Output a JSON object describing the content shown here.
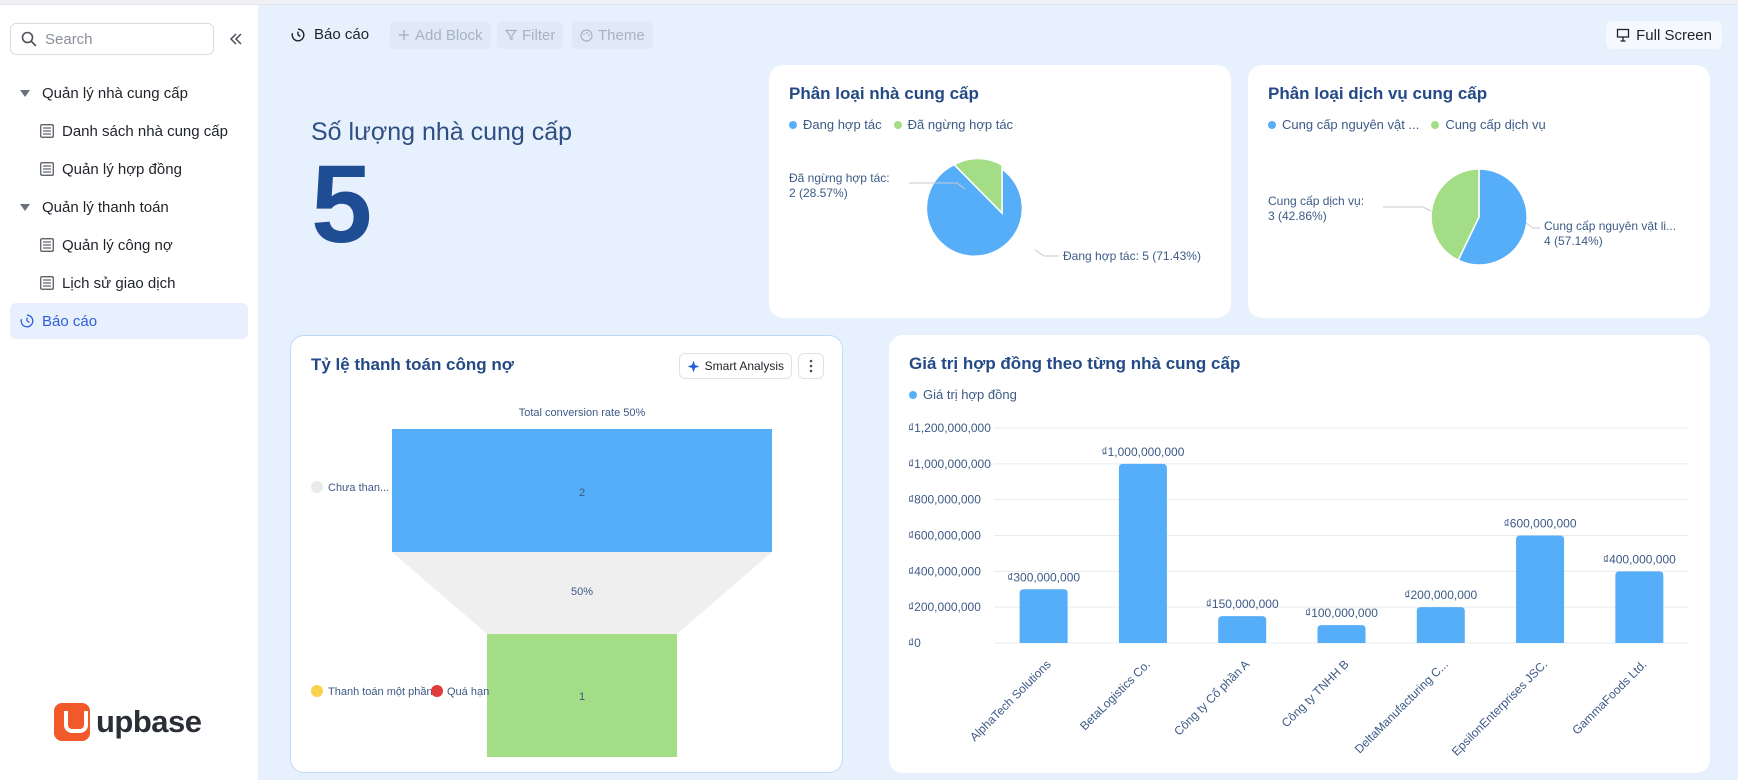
{
  "sidebar": {
    "search_placeholder": "Search",
    "items": [
      {
        "label": "Quản lý nhà cung cấp"
      },
      {
        "label": "Danh sách nhà cung cấp"
      },
      {
        "label": "Quản lý hợp đồng"
      },
      {
        "label": "Quản lý thanh toán"
      },
      {
        "label": "Quản lý công nợ"
      },
      {
        "label": "Lịch sử giao dịch"
      },
      {
        "label": "Báo cáo"
      }
    ],
    "logo_text": "upbase"
  },
  "toolbar": {
    "title": "Báo cáo",
    "add_block": "Add Block",
    "filter": "Filter",
    "theme": "Theme",
    "full_screen": "Full Screen"
  },
  "kpi": {
    "title": "Số lượng nhà cung cấp",
    "value": "5"
  },
  "pie1": {
    "title": "Phân loại nhà cung cấp",
    "legend": [
      "Đang hợp tác",
      "Đã ngừng hợp tác"
    ],
    "label_a_line1": "Đã ngừng hợp tác:",
    "label_a_line2": "2 (28.57%)",
    "label_b": "Đang hợp tác: 5 (71.43%)"
  },
  "pie2": {
    "title": "Phân loại dịch vụ cung cấp",
    "legend": [
      "Cung cấp nguyên vật ...",
      "Cung cấp dịch vụ"
    ],
    "label_a_line1": "Cung cấp dịch vụ:",
    "label_a_line2": "3 (42.86%)",
    "label_b_line1": "Cung cấp nguyên vật li...",
    "label_b_line2": "4 (57.14%)"
  },
  "funnel": {
    "title": "Tỷ lệ thanh toán công nợ",
    "smart_analysis": "Smart Analysis",
    "total_label": "Total conversion rate 50%",
    "conversion_label": "50%",
    "stage1_label": "Chưa than...",
    "stage1_value": "2",
    "stage2_label_a": "Thanh toán một phần",
    "stage2_label_b": "Quá hạn",
    "stage2_value": "1"
  },
  "chart_data": {
    "type": "bar",
    "title": "Giá trị hợp đồng theo từng nhà cung cấp",
    "series": [
      {
        "name": "Giá trị hợp đồng",
        "values": [
          300000000,
          1000000000,
          150000000,
          100000000,
          200000000,
          600000000,
          400000000
        ]
      }
    ],
    "categories": [
      "AlphaTech Solutions",
      "BetaLogistics Co.",
      "Công ty Cổ phần A",
      "Công ty TNHH B",
      "DeltaManufacturing C...",
      "EpsilonEnterprises JSC.",
      "GammaFoods Ltd."
    ],
    "value_labels": [
      "₫300,000,000",
      "₫1,000,000,000",
      "₫150,000,000",
      "₫100,000,000",
      "₫200,000,000",
      "₫600,000,000",
      "₫400,000,000"
    ],
    "y_ticks": [
      "₫0",
      "₫200,000,000",
      "₫400,000,000",
      "₫600,000,000",
      "₫800,000,000",
      "₫1,000,000,000",
      "₫1,200,000,000"
    ],
    "ylim": [
      0,
      1200000000
    ],
    "grid": true,
    "legend": "top-left"
  },
  "colors": {
    "blue": "#57aef8",
    "green": "#a3dd85",
    "title": "#244a86"
  }
}
